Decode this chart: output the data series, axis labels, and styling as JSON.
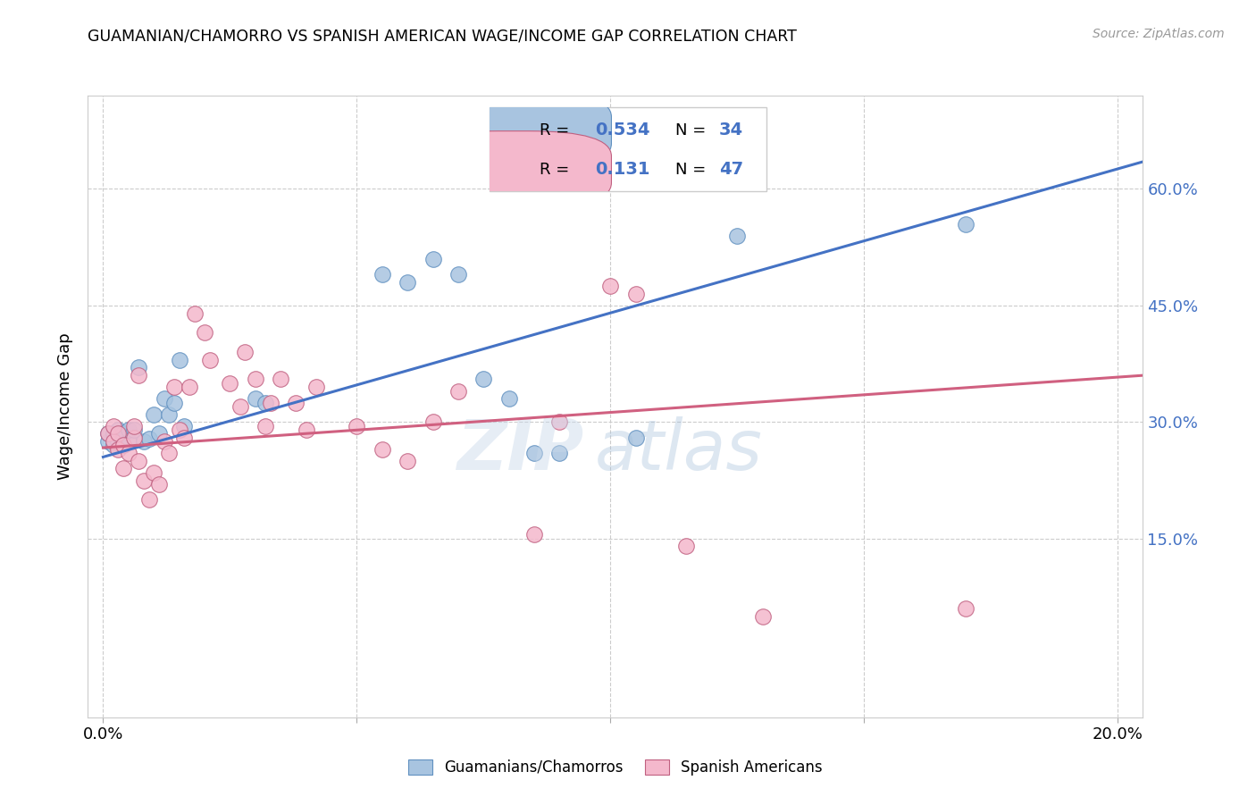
{
  "title": "GUAMANIAN/CHAMORRO VS SPANISH AMERICAN WAGE/INCOME GAP CORRELATION CHART",
  "source": "Source: ZipAtlas.com",
  "ylabel": "Wage/Income Gap",
  "blue_R": "0.534",
  "blue_N": "34",
  "pink_R": "0.131",
  "pink_N": "47",
  "legend_labels": [
    "Guamanians/Chamorros",
    "Spanish Americans"
  ],
  "blue_color": "#a8c4e0",
  "pink_color": "#f4b8cc",
  "blue_line_color": "#4472c4",
  "pink_line_color": "#d06080",
  "blue_edge_color": "#6090c0",
  "pink_edge_color": "#c06080",
  "blue_points_x": [
    0.001,
    0.001,
    0.002,
    0.002,
    0.003,
    0.003,
    0.004,
    0.004,
    0.005,
    0.005,
    0.006,
    0.007,
    0.008,
    0.009,
    0.01,
    0.011,
    0.012,
    0.013,
    0.014,
    0.015,
    0.016,
    0.03,
    0.032,
    0.055,
    0.06,
    0.065,
    0.07,
    0.075,
    0.08,
    0.085,
    0.09,
    0.105,
    0.125,
    0.17
  ],
  "blue_points_y": [
    0.275,
    0.285,
    0.27,
    0.285,
    0.275,
    0.29,
    0.27,
    0.285,
    0.275,
    0.29,
    0.29,
    0.37,
    0.275,
    0.278,
    0.31,
    0.285,
    0.33,
    0.31,
    0.325,
    0.38,
    0.295,
    0.33,
    0.325,
    0.49,
    0.48,
    0.51,
    0.49,
    0.355,
    0.33,
    0.26,
    0.26,
    0.28,
    0.54,
    0.555
  ],
  "pink_points_x": [
    0.001,
    0.002,
    0.002,
    0.003,
    0.003,
    0.004,
    0.004,
    0.005,
    0.006,
    0.006,
    0.007,
    0.007,
    0.008,
    0.009,
    0.01,
    0.011,
    0.012,
    0.013,
    0.014,
    0.015,
    0.016,
    0.017,
    0.018,
    0.02,
    0.021,
    0.025,
    0.027,
    0.028,
    0.03,
    0.032,
    0.033,
    0.035,
    0.038,
    0.04,
    0.042,
    0.05,
    0.055,
    0.06,
    0.065,
    0.07,
    0.085,
    0.09,
    0.1,
    0.105,
    0.115,
    0.13,
    0.17
  ],
  "pink_points_y": [
    0.285,
    0.275,
    0.295,
    0.265,
    0.285,
    0.24,
    0.27,
    0.26,
    0.28,
    0.295,
    0.36,
    0.25,
    0.225,
    0.2,
    0.235,
    0.22,
    0.275,
    0.26,
    0.345,
    0.29,
    0.28,
    0.345,
    0.44,
    0.415,
    0.38,
    0.35,
    0.32,
    0.39,
    0.355,
    0.295,
    0.325,
    0.355,
    0.325,
    0.29,
    0.345,
    0.295,
    0.265,
    0.25,
    0.3,
    0.34,
    0.155,
    0.3,
    0.475,
    0.465,
    0.14,
    0.05,
    0.06
  ],
  "xlim": [
    -0.003,
    0.205
  ],
  "ylim": [
    -0.08,
    0.72
  ],
  "x_tick_positions": [
    0.0,
    0.05,
    0.1,
    0.15,
    0.2
  ],
  "y_tick_positions": [
    0.15,
    0.3,
    0.45,
    0.6
  ],
  "blue_line_x": [
    0.0,
    0.205
  ],
  "blue_line_y": [
    0.255,
    0.635
  ],
  "pink_line_x": [
    0.0,
    0.205
  ],
  "pink_line_y": [
    0.267,
    0.36
  ]
}
